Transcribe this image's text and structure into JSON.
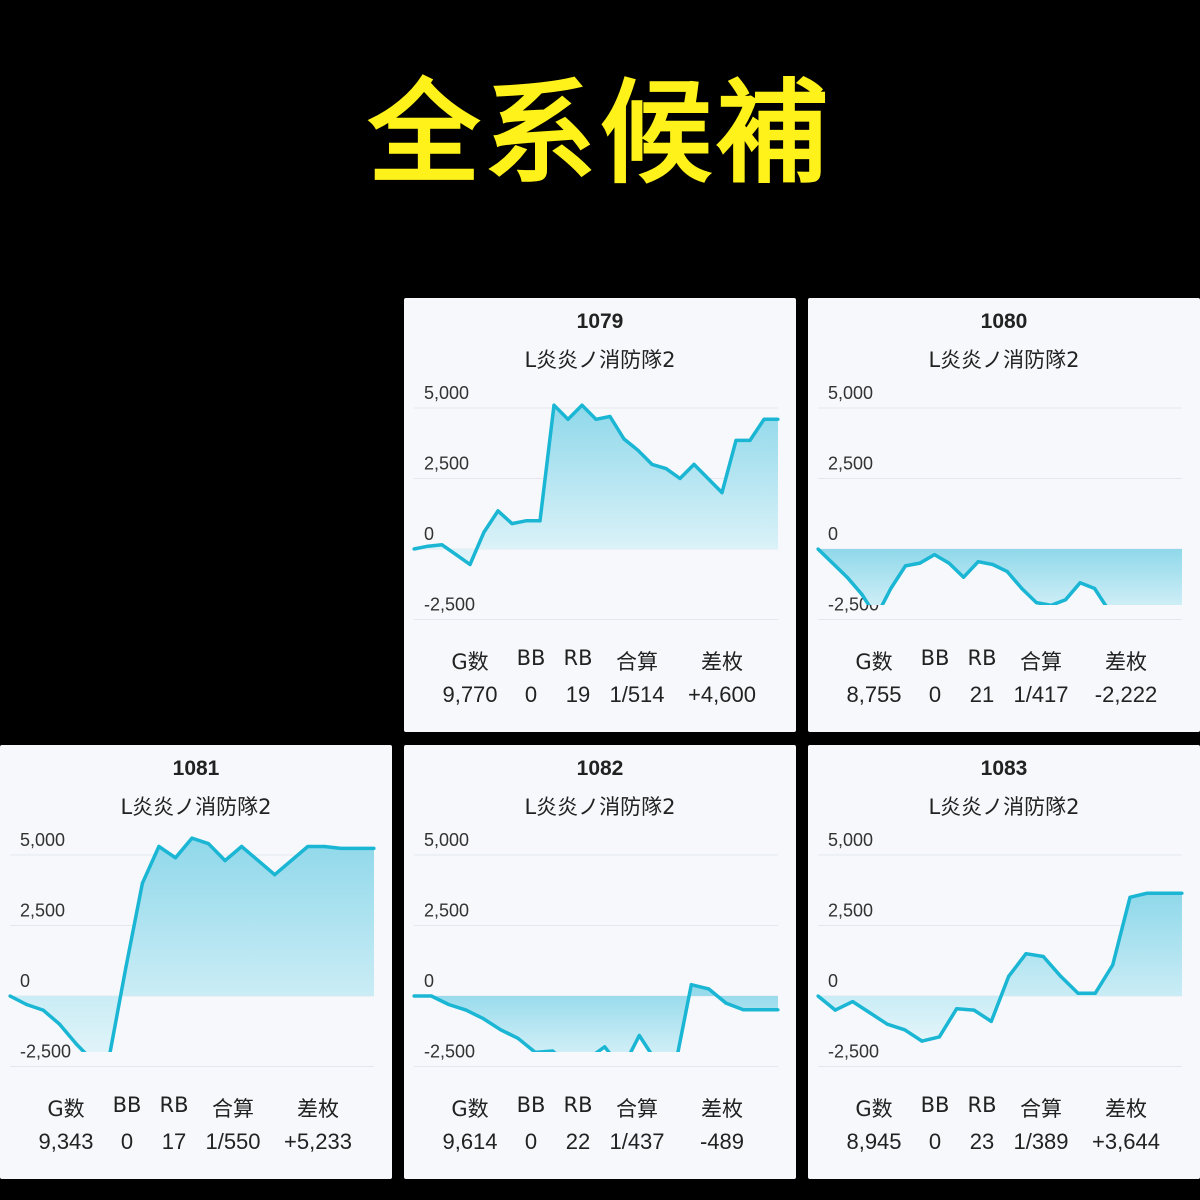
{
  "headline": "全系候補",
  "stat_labels": [
    "G数",
    "BB",
    "RB",
    "合算",
    "差枚"
  ],
  "colors": {
    "line": "#1ab6d4",
    "fill_top": "#8fd8ea",
    "fill_bottom": "#e3f5fa",
    "headline": "#fff21a",
    "card_bg": "#f6f8fb"
  },
  "chart_data": [
    {
      "type": "area",
      "title": "1079",
      "subtitle": "L炎炎ノ消防隊2",
      "ylim": [
        -2500,
        5000
      ],
      "yticks": [
        "5,000",
        "2,500",
        "0",
        "-2,500"
      ],
      "ytick_values": [
        5000,
        2500,
        0,
        -2500
      ],
      "grid": true,
      "values": [
        0,
        100,
        150,
        -200,
        -550,
        600,
        1350,
        900,
        1000,
        1000,
        5100,
        4600,
        5100,
        4600,
        4700,
        3900,
        3500,
        3000,
        2850,
        2500,
        3000,
        2500,
        2000,
        3850,
        3850,
        4600,
        4600
      ],
      "stats": {
        "games": "9,770",
        "bb": "0",
        "rb": "19",
        "combined": "1/514",
        "diff": "+4,600"
      }
    },
    {
      "type": "area",
      "title": "1080",
      "subtitle": "L炎炎ノ消防隊2",
      "ylim": [
        -2500,
        5000
      ],
      "yticks": [
        "5,000",
        "2,500",
        "0",
        "-2,500"
      ],
      "ytick_values": [
        5000,
        2500,
        0,
        -2500
      ],
      "grid": true,
      "values": [
        0,
        -500,
        -1000,
        -1600,
        -2400,
        -1400,
        -600,
        -500,
        -200,
        -500,
        -1000,
        -450,
        -550,
        -800,
        -1400,
        -1900,
        -2000,
        -1800,
        -1200,
        -1400,
        -2200,
        -2650,
        -2650,
        -2300,
        -2200,
        -2222
      ],
      "stats": {
        "games": "8,755",
        "bb": "0",
        "rb": "21",
        "combined": "1/417",
        "diff": "-2,222"
      }
    },
    {
      "type": "area",
      "title": "1081",
      "subtitle": "L炎炎ノ消防隊2",
      "ylim": [
        -2500,
        5000
      ],
      "yticks": [
        "5,000",
        "2,500",
        "0",
        "-2,500"
      ],
      "ytick_values": [
        5000,
        2500,
        0,
        -2500
      ],
      "grid": true,
      "values": [
        0,
        -300,
        -500,
        -1000,
        -1700,
        -2300,
        -2150,
        1000,
        4000,
        5300,
        4900,
        5600,
        5400,
        4800,
        5300,
        4800,
        4300,
        4800,
        5300,
        5300,
        5233,
        5233,
        5233
      ],
      "stats": {
        "games": "9,343",
        "bb": "0",
        "rb": "17",
        "combined": "1/550",
        "diff": "+5,233"
      }
    },
    {
      "type": "area",
      "title": "1082",
      "subtitle": "L炎炎ノ消防隊2",
      "ylim": [
        -2500,
        5000
      ],
      "yticks": [
        "5,000",
        "2,500",
        "0",
        "-2,500"
      ],
      "ytick_values": [
        5000,
        2500,
        0,
        -2500
      ],
      "grid": true,
      "values": [
        0,
        0,
        -300,
        -500,
        -800,
        -1200,
        -1500,
        -2000,
        -1950,
        -2500,
        -2250,
        -1800,
        -2600,
        -1400,
        -2350,
        -2700,
        400,
        250,
        -250,
        -489,
        -489,
        -489
      ],
      "stats": {
        "games": "9,614",
        "bb": "0",
        "rb": "22",
        "combined": "1/437",
        "diff": "-489"
      }
    },
    {
      "type": "area",
      "title": "1083",
      "subtitle": "L炎炎ノ消防隊2",
      "ylim": [
        -2500,
        5000
      ],
      "yticks": [
        "5,000",
        "2,500",
        "0",
        "-2,500"
      ],
      "ytick_values": [
        5000,
        2500,
        0,
        -2500
      ],
      "grid": true,
      "values": [
        0,
        -500,
        -200,
        -600,
        -1000,
        -1200,
        -1600,
        -1450,
        -450,
        -500,
        -900,
        700,
        1500,
        1400,
        700,
        100,
        100,
        1100,
        3500,
        3644,
        3644,
        3644
      ],
      "stats": {
        "games": "8,945",
        "bb": "0",
        "rb": "23",
        "combined": "1/389",
        "diff": "+3,644"
      }
    }
  ]
}
